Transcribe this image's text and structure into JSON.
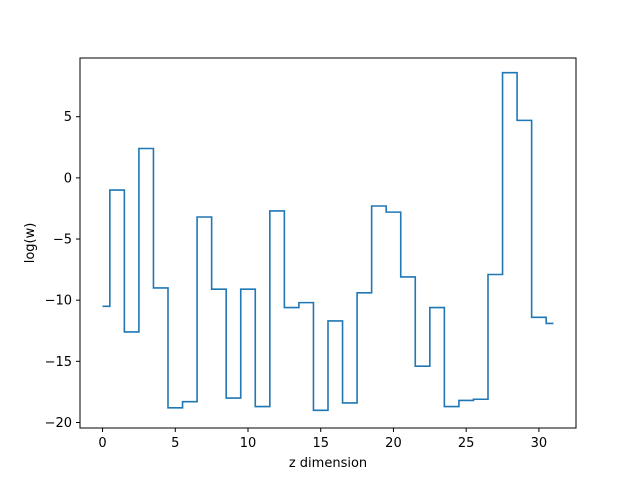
{
  "chart_data": {
    "type": "line",
    "drawstyle": "steps-mid",
    "title": "",
    "xlabel": "z dimension",
    "ylabel": "log(w)",
    "xlim": [
      -1.55,
      32.55
    ],
    "ylim": [
      -20.45,
      9.8
    ],
    "xticks": [
      0,
      5,
      10,
      15,
      20,
      25,
      30
    ],
    "yticks": [
      -20,
      -15,
      -10,
      -5,
      0,
      5
    ],
    "grid": false,
    "line_color": "#1f77b4",
    "series": [
      {
        "x": [
          0,
          1,
          2,
          3,
          4,
          5,
          6,
          7,
          8,
          9,
          10,
          11,
          12,
          13,
          14,
          15,
          16,
          17,
          18,
          19,
          20,
          21,
          22,
          23,
          24,
          25,
          26,
          27,
          28,
          29,
          30,
          31
        ],
        "values": [
          -10.5,
          -1.0,
          -12.6,
          2.4,
          -9.0,
          -18.8,
          -18.3,
          -3.2,
          -9.1,
          -18.0,
          -9.1,
          -18.7,
          -2.7,
          -10.6,
          -10.2,
          -19.0,
          -11.7,
          -18.4,
          -9.4,
          -2.3,
          -2.8,
          -8.1,
          -15.4,
          -10.6,
          -18.7,
          -18.2,
          -18.1,
          -7.9,
          8.6,
          4.7,
          -11.4,
          -11.9
        ]
      }
    ]
  }
}
